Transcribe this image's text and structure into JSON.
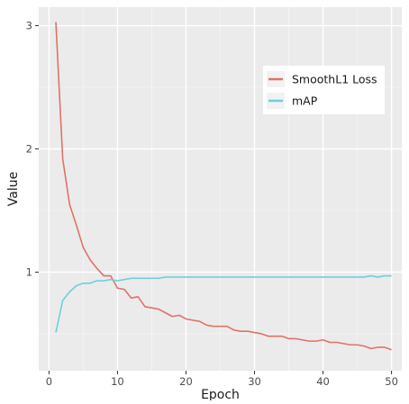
{
  "chart_data": {
    "type": "line",
    "title": "",
    "xlabel": "Epoch",
    "ylabel": "Value",
    "xlim": [
      -1.5,
      51.5
    ],
    "ylim": [
      0.2,
      3.15
    ],
    "xticks": [
      0,
      10,
      20,
      30,
      40,
      50
    ],
    "yticks": [
      1,
      2,
      3
    ],
    "grid": true,
    "legend_position": "top-right",
    "background": "#ebebeb",
    "series": [
      {
        "name": "SmoothL1 Loss",
        "color": "#e07268",
        "x": [
          1,
          2,
          3,
          4,
          5,
          6,
          7,
          8,
          9,
          10,
          11,
          12,
          13,
          14,
          15,
          16,
          17,
          18,
          19,
          20,
          21,
          22,
          23,
          24,
          25,
          26,
          27,
          28,
          29,
          30,
          31,
          32,
          33,
          34,
          35,
          36,
          37,
          38,
          39,
          40,
          41,
          42,
          43,
          44,
          45,
          46,
          47,
          48,
          49,
          50
        ],
        "y": [
          3.03,
          1.92,
          1.55,
          1.38,
          1.2,
          1.1,
          1.03,
          0.97,
          0.97,
          0.87,
          0.86,
          0.79,
          0.8,
          0.72,
          0.71,
          0.7,
          0.67,
          0.64,
          0.65,
          0.62,
          0.61,
          0.6,
          0.57,
          0.56,
          0.56,
          0.56,
          0.53,
          0.52,
          0.52,
          0.51,
          0.5,
          0.48,
          0.48,
          0.48,
          0.46,
          0.46,
          0.45,
          0.44,
          0.44,
          0.45,
          0.43,
          0.43,
          0.42,
          0.41,
          0.41,
          0.4,
          0.38,
          0.39,
          0.39,
          0.37
        ]
      },
      {
        "name": "mAP",
        "color": "#6fcfdc",
        "x": [
          1,
          2,
          3,
          4,
          5,
          6,
          7,
          8,
          9,
          10,
          11,
          12,
          13,
          14,
          15,
          16,
          17,
          18,
          19,
          20,
          21,
          22,
          23,
          24,
          25,
          26,
          27,
          28,
          29,
          30,
          31,
          32,
          33,
          34,
          35,
          36,
          37,
          38,
          39,
          40,
          41,
          42,
          43,
          44,
          45,
          46,
          47,
          48,
          49,
          50
        ],
        "y": [
          0.51,
          0.77,
          0.84,
          0.89,
          0.91,
          0.91,
          0.93,
          0.93,
          0.94,
          0.93,
          0.94,
          0.95,
          0.95,
          0.95,
          0.95,
          0.95,
          0.96,
          0.96,
          0.96,
          0.96,
          0.96,
          0.96,
          0.96,
          0.96,
          0.96,
          0.96,
          0.96,
          0.96,
          0.96,
          0.96,
          0.96,
          0.96,
          0.96,
          0.96,
          0.96,
          0.96,
          0.96,
          0.96,
          0.96,
          0.96,
          0.96,
          0.96,
          0.96,
          0.96,
          0.96,
          0.96,
          0.97,
          0.96,
          0.97,
          0.97
        ]
      }
    ]
  }
}
